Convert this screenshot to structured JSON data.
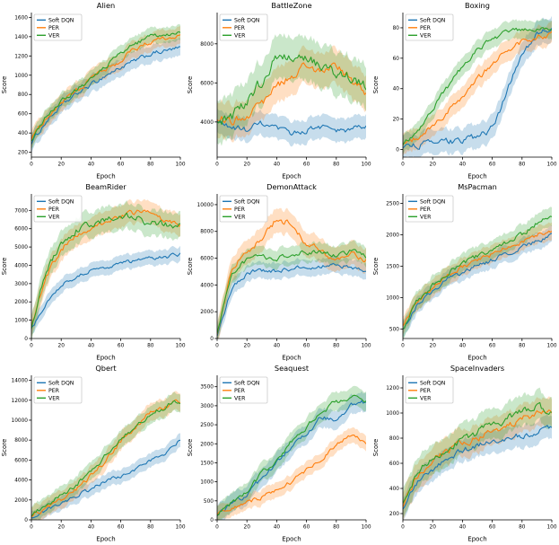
{
  "page": {
    "background": "#ffffff"
  },
  "legend_labels": [
    "Soft DQN",
    "PER",
    "VER"
  ],
  "colors": {
    "soft_dqn": "#1f77b4",
    "per": "#ff7f0e",
    "ver": "#2ca02c"
  },
  "chart_data": [
    {
      "type": "line",
      "title": "Alien",
      "xlabel": "Epoch",
      "ylabel": "Score",
      "x": [
        0,
        10,
        20,
        30,
        40,
        50,
        60,
        70,
        80,
        90,
        100
      ],
      "xticks": [
        0,
        20,
        40,
        60,
        80,
        100
      ],
      "yticks": [
        200,
        400,
        600,
        800,
        1000,
        1200,
        1400,
        1600
      ],
      "ylim": [
        150,
        1650
      ],
      "legend_position": "upper-left",
      "grid": false,
      "series": [
        {
          "name": "Soft DQN",
          "color": "#1f77b4",
          "band": 90,
          "values": [
            300,
            520,
            680,
            800,
            900,
            1000,
            1080,
            1150,
            1220,
            1250,
            1280
          ]
        },
        {
          "name": "PER",
          "color": "#ff7f0e",
          "band": 90,
          "values": [
            330,
            560,
            720,
            850,
            950,
            1060,
            1150,
            1280,
            1350,
            1390,
            1420
          ]
        },
        {
          "name": "VER",
          "color": "#2ca02c",
          "band": 80,
          "values": [
            320,
            570,
            730,
            840,
            960,
            1090,
            1230,
            1330,
            1400,
            1420,
            1430
          ]
        }
      ]
    },
    {
      "type": "line",
      "title": "BattleZone",
      "xlabel": "Epoch",
      "ylabel": "Score",
      "x": [
        0,
        10,
        20,
        30,
        40,
        50,
        60,
        70,
        80,
        90,
        100
      ],
      "xticks": [
        0,
        20,
        40,
        60,
        80,
        100
      ],
      "yticks": [
        4000,
        6000,
        8000
      ],
      "ylim": [
        2200,
        9600
      ],
      "legend_position": "upper-left",
      "grid": false,
      "series": [
        {
          "name": "Soft DQN",
          "color": "#1f77b4",
          "band": 600,
          "values": [
            4000,
            3700,
            3600,
            3900,
            3600,
            3400,
            3600,
            3800,
            3500,
            3600,
            3800
          ]
        },
        {
          "name": "PER",
          "color": "#ff7f0e",
          "band": 900,
          "values": [
            4300,
            4000,
            4400,
            5000,
            5800,
            6400,
            6900,
            6600,
            6800,
            6100,
            5600
          ]
        },
        {
          "name": "VER",
          "color": "#2ca02c",
          "band": 1100,
          "values": [
            3800,
            4300,
            5000,
            6100,
            7400,
            7100,
            7300,
            6900,
            6500,
            6300,
            5900
          ]
        }
      ]
    },
    {
      "type": "line",
      "title": "Boxing",
      "xlabel": "Epoch",
      "ylabel": "Score",
      "x": [
        0,
        10,
        20,
        30,
        40,
        50,
        60,
        70,
        80,
        90,
        100
      ],
      "xticks": [
        0,
        20,
        40,
        60,
        80,
        100
      ],
      "yticks": [
        0,
        20,
        40,
        60,
        80
      ],
      "ylim": [
        -5,
        90
      ],
      "legend_position": "upper-left",
      "grid": false,
      "series": [
        {
          "name": "Soft DQN",
          "color": "#1f77b4",
          "band": 8,
          "values": [
            2,
            3,
            4,
            5,
            6,
            8,
            14,
            38,
            64,
            76,
            79
          ]
        },
        {
          "name": "PER",
          "color": "#ff7f0e",
          "band": 7,
          "values": [
            3,
            8,
            15,
            25,
            35,
            46,
            56,
            66,
            71,
            74,
            76
          ]
        },
        {
          "name": "VER",
          "color": "#2ca02c",
          "band": 6,
          "values": [
            3,
            12,
            26,
            41,
            55,
            66,
            73,
            77,
            79,
            80,
            80
          ]
        }
      ]
    },
    {
      "type": "line",
      "title": "BeamRider",
      "xlabel": "Epoch",
      "ylabel": "Score",
      "x": [
        0,
        10,
        20,
        30,
        40,
        50,
        60,
        70,
        80,
        90,
        100
      ],
      "xticks": [
        0,
        20,
        40,
        60,
        80,
        100
      ],
      "yticks": [
        0,
        1000,
        2000,
        3000,
        4000,
        5000,
        6000,
        7000
      ],
      "ylim": [
        0,
        7900
      ],
      "legend_position": "upper-left",
      "grid": false,
      "series": [
        {
          "name": "Soft DQN",
          "color": "#1f77b4",
          "band": 400,
          "values": [
            500,
            2000,
            2900,
            3400,
            3700,
            3900,
            4100,
            4250,
            4350,
            4450,
            4600
          ]
        },
        {
          "name": "PER",
          "color": "#ff7f0e",
          "band": 600,
          "values": [
            600,
            3400,
            4900,
            5700,
            6100,
            6400,
            6700,
            6900,
            6800,
            6400,
            6100
          ]
        },
        {
          "name": "VER",
          "color": "#2ca02c",
          "band": 700,
          "values": [
            600,
            3700,
            5100,
            5900,
            6300,
            6500,
            6800,
            6600,
            6300,
            6200,
            6100
          ]
        }
      ]
    },
    {
      "type": "line",
      "title": "DemonAttack",
      "xlabel": "Epoch",
      "ylabel": "Score",
      "x": [
        0,
        10,
        20,
        30,
        40,
        50,
        60,
        70,
        80,
        90,
        100
      ],
      "xticks": [
        0,
        20,
        40,
        60,
        80,
        100
      ],
      "yticks": [
        0,
        2000,
        4000,
        6000,
        8000,
        10000
      ],
      "ylim": [
        0,
        10800
      ],
      "legend_position": "upper-left",
      "grid": false,
      "series": [
        {
          "name": "Soft DQN",
          "color": "#1f77b4",
          "band": 600,
          "values": [
            200,
            3800,
            4900,
            5100,
            5000,
            5200,
            5300,
            5400,
            5500,
            5300,
            5100
          ]
        },
        {
          "name": "PER",
          "color": "#ff7f0e",
          "band": 900,
          "values": [
            300,
            5300,
            6400,
            7400,
            8900,
            8600,
            7200,
            6500,
            6000,
            6200,
            5900
          ]
        },
        {
          "name": "VER",
          "color": "#2ca02c",
          "band": 700,
          "values": [
            300,
            4900,
            5900,
            6100,
            6000,
            6300,
            6500,
            6400,
            6300,
            6500,
            6100
          ]
        }
      ]
    },
    {
      "type": "line",
      "title": "MsPacman",
      "xlabel": "Epoch",
      "ylabel": "Score",
      "x": [
        0,
        10,
        20,
        30,
        40,
        50,
        60,
        70,
        80,
        90,
        100
      ],
      "xticks": [
        0,
        20,
        40,
        60,
        80,
        100
      ],
      "yticks": [
        500,
        1000,
        1500,
        2000,
        2500
      ],
      "ylim": [
        350,
        2650
      ],
      "legend_position": "upper-left",
      "grid": false,
      "series": [
        {
          "name": "Soft DQN",
          "color": "#1f77b4",
          "band": 130,
          "values": [
            480,
            900,
            1100,
            1290,
            1400,
            1500,
            1600,
            1700,
            1800,
            1900,
            2000
          ]
        },
        {
          "name": "PER",
          "color": "#ff7f0e",
          "band": 140,
          "values": [
            520,
            950,
            1150,
            1340,
            1490,
            1590,
            1690,
            1800,
            1900,
            2000,
            2080
          ]
        },
        {
          "name": "VER",
          "color": "#2ca02c",
          "band": 150,
          "values": [
            500,
            950,
            1200,
            1390,
            1540,
            1650,
            1760,
            1900,
            2010,
            2180,
            2280
          ]
        }
      ]
    },
    {
      "type": "line",
      "title": "Qbert",
      "xlabel": "Epoch",
      "ylabel": "Score",
      "x": [
        0,
        10,
        20,
        30,
        40,
        50,
        60,
        70,
        80,
        90,
        100
      ],
      "xticks": [
        0,
        20,
        40,
        60,
        80,
        100
      ],
      "yticks": [
        0,
        2000,
        4000,
        6000,
        8000,
        10000,
        12000,
        14000
      ],
      "ylim": [
        0,
        14500
      ],
      "legend_position": "upper-left",
      "grid": false,
      "series": [
        {
          "name": "Soft DQN",
          "color": "#1f77b4",
          "band": 700,
          "values": [
            300,
            1000,
            1700,
            2400,
            3100,
            3900,
            4400,
            5000,
            6000,
            6600,
            8000
          ]
        },
        {
          "name": "PER",
          "color": "#ff7f0e",
          "band": 900,
          "values": [
            400,
            1200,
            2100,
            3000,
            4400,
            5900,
            7900,
            9400,
            10900,
            11400,
            12000
          ]
        },
        {
          "name": "VER",
          "color": "#2ca02c",
          "band": 900,
          "values": [
            400,
            1500,
            2500,
            3500,
            5000,
            6500,
            8000,
            9500,
            10500,
            11400,
            11900
          ]
        }
      ]
    },
    {
      "type": "line",
      "title": "Seaquest",
      "xlabel": "Epoch",
      "ylabel": "Score",
      "x": [
        0,
        10,
        20,
        30,
        40,
        50,
        60,
        70,
        80,
        90,
        100
      ],
      "xticks": [
        0,
        20,
        40,
        60,
        80,
        100
      ],
      "yticks": [
        0,
        500,
        1000,
        1500,
        2000,
        2500,
        3000,
        3500
      ],
      "ylim": [
        0,
        3800
      ],
      "legend_position": "upper-left",
      "grid": false,
      "series": [
        {
          "name": "Soft DQN",
          "color": "#1f77b4",
          "band": 250,
          "values": [
            150,
            400,
            700,
            1100,
            1500,
            1900,
            2300,
            2700,
            2600,
            3000,
            3100
          ]
        },
        {
          "name": "PER",
          "color": "#ff7f0e",
          "band": 200,
          "values": [
            150,
            300,
            450,
            600,
            800,
            1000,
            1300,
            1600,
            2000,
            2200,
            2050
          ]
        },
        {
          "name": "VER",
          "color": "#2ca02c",
          "band": 250,
          "values": [
            160,
            450,
            800,
            1200,
            1600,
            2050,
            2450,
            2850,
            3100,
            3250,
            3100
          ]
        }
      ]
    },
    {
      "type": "line",
      "title": "SpaceInvaders",
      "xlabel": "Epoch",
      "ylabel": "Score",
      "x": [
        0,
        10,
        20,
        30,
        40,
        50,
        60,
        70,
        80,
        90,
        100
      ],
      "xticks": [
        0,
        20,
        40,
        60,
        80,
        100
      ],
      "yticks": [
        200,
        400,
        600,
        800,
        1000,
        1200
      ],
      "ylim": [
        150,
        1300
      ],
      "legend_position": "upper-left",
      "grid": false,
      "series": [
        {
          "name": "Soft DQN",
          "color": "#1f77b4",
          "band": 90,
          "values": [
            250,
            450,
            550,
            640,
            700,
            740,
            780,
            800,
            820,
            850,
            900
          ]
        },
        {
          "name": "PER",
          "color": "#ff7f0e",
          "band": 110,
          "values": [
            260,
            500,
            610,
            700,
            750,
            800,
            850,
            900,
            950,
            1000,
            1000
          ]
        },
        {
          "name": "VER",
          "color": "#2ca02c",
          "band": 120,
          "values": [
            270,
            520,
            650,
            720,
            790,
            850,
            900,
            950,
            1000,
            1050,
            1000
          ]
        }
      ]
    }
  ]
}
